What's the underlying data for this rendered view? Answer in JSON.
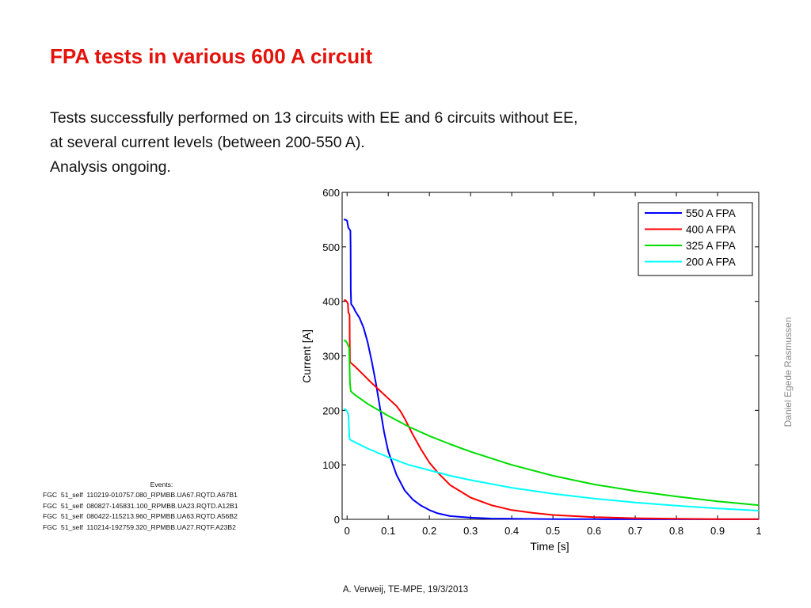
{
  "slide": {
    "title": "FPA tests in various 600 A circuit",
    "body_lines": [
      "Tests successfully performed on 13 circuits with EE and 6 circuits without EE,",
      "at several current levels (between 200-550 A).",
      "Analysis ongoing."
    ],
    "events_title": "Events:",
    "events": [
      "FGC  51_self  110219-010757.080_RPMBB.UA67.RQTD.A67B1",
      "FGC  51_self  080827-145831.100_RPMBB.UA23.RQTD.A12B1",
      "FGC  51_self  080422-115213.960_RPMBB.UA63.RQTD.A56B2",
      "FGC  51_self  110214-192759.320_RPMBB.UA27.RQTF.A23B2"
    ],
    "credit": "Daniel Egede Rasmussen",
    "footer": "A. Verweij, TE-MPE, 19/3/2013"
  },
  "chart_data": {
    "type": "line",
    "title": "",
    "xlabel": "Time [s]",
    "ylabel": "Current [A]",
    "xlim": [
      0,
      1
    ],
    "ylim": [
      0,
      600
    ],
    "xticks": [
      0,
      0.1,
      0.2,
      0.3,
      0.4,
      0.5,
      0.6,
      0.7,
      0.8,
      0.9,
      1
    ],
    "xtick_labels": [
      "0",
      "0.1",
      "0.2",
      "0.3",
      "0.4",
      "0.5",
      "0.6",
      "0.7",
      "0.8",
      "0.9",
      "1"
    ],
    "yticks": [
      0,
      100,
      200,
      300,
      400,
      500,
      600
    ],
    "ytick_labels": [
      "0",
      "100",
      "200",
      "300",
      "400",
      "500",
      "600"
    ],
    "grid": false,
    "legend_position": "top-right",
    "series": [
      {
        "name": "550 A FPA",
        "color": "#0000ff",
        "x": [
          -0.008,
          -0.004,
          0,
          0.003,
          0.006,
          0.008,
          0.0085,
          0.009,
          0.01,
          0.015,
          0.02,
          0.03,
          0.04,
          0.05,
          0.06,
          0.07,
          0.08,
          0.09,
          0.1,
          0.12,
          0.14,
          0.16,
          0.18,
          0.2,
          0.22,
          0.25,
          0.3,
          0.35,
          0.4,
          0.5,
          0.6,
          0.7,
          0.8,
          1.0
        ],
        "y": [
          550,
          550,
          548,
          535,
          532,
          530,
          500,
          420,
          395,
          390,
          382,
          370,
          352,
          325,
          290,
          250,
          205,
          160,
          125,
          82,
          53,
          36,
          25,
          17,
          11,
          6,
          3,
          1.5,
          1,
          0.5,
          0.3,
          0.2,
          0.1,
          0.1
        ]
      },
      {
        "name": "400 A FPA",
        "color": "#ff0000",
        "x": [
          -0.008,
          -0.004,
          0,
          0.002,
          0.003,
          0.006,
          0.0065,
          0.007,
          0.008,
          0.02,
          0.04,
          0.06,
          0.08,
          0.1,
          0.12,
          0.13,
          0.14,
          0.15,
          0.16,
          0.18,
          0.2,
          0.22,
          0.25,
          0.3,
          0.35,
          0.4,
          0.45,
          0.5,
          0.55,
          0.6,
          0.7,
          0.8,
          0.9,
          1.0
        ],
        "y": [
          402,
          402,
          399,
          395,
          380,
          375,
          330,
          290,
          288,
          280,
          265,
          250,
          236,
          222,
          208,
          198,
          185,
          170,
          155,
          128,
          104,
          86,
          63,
          40,
          26,
          17,
          12,
          8,
          6,
          4,
          2,
          1,
          0.5,
          0.5
        ]
      },
      {
        "name": "325 A FPA",
        "color": "#00dd00",
        "x": [
          -0.008,
          -0.004,
          0,
          0.003,
          0.005,
          0.006,
          0.007,
          0.009,
          0.02,
          0.05,
          0.1,
          0.15,
          0.2,
          0.25,
          0.3,
          0.4,
          0.5,
          0.6,
          0.7,
          0.8,
          0.9,
          1.0
        ],
        "y": [
          328,
          328,
          324,
          318,
          316,
          280,
          250,
          235,
          228,
          212,
          190,
          170,
          153,
          138,
          124,
          100,
          80,
          64,
          52,
          42,
          33,
          26
        ]
      },
      {
        "name": "200 A FPA",
        "color": "#00ffff",
        "x": [
          -0.008,
          -0.004,
          0,
          0.002,
          0.003,
          0.004,
          0.005,
          0.006,
          0.01,
          0.05,
          0.1,
          0.15,
          0.2,
          0.25,
          0.3,
          0.4,
          0.5,
          0.6,
          0.7,
          0.8,
          0.9,
          1.0
        ],
        "y": [
          202,
          202,
          198,
          195,
          192,
          180,
          160,
          147,
          145,
          130,
          114,
          100,
          90,
          80,
          72,
          58,
          47,
          38,
          31,
          25,
          20,
          16
        ]
      }
    ]
  }
}
